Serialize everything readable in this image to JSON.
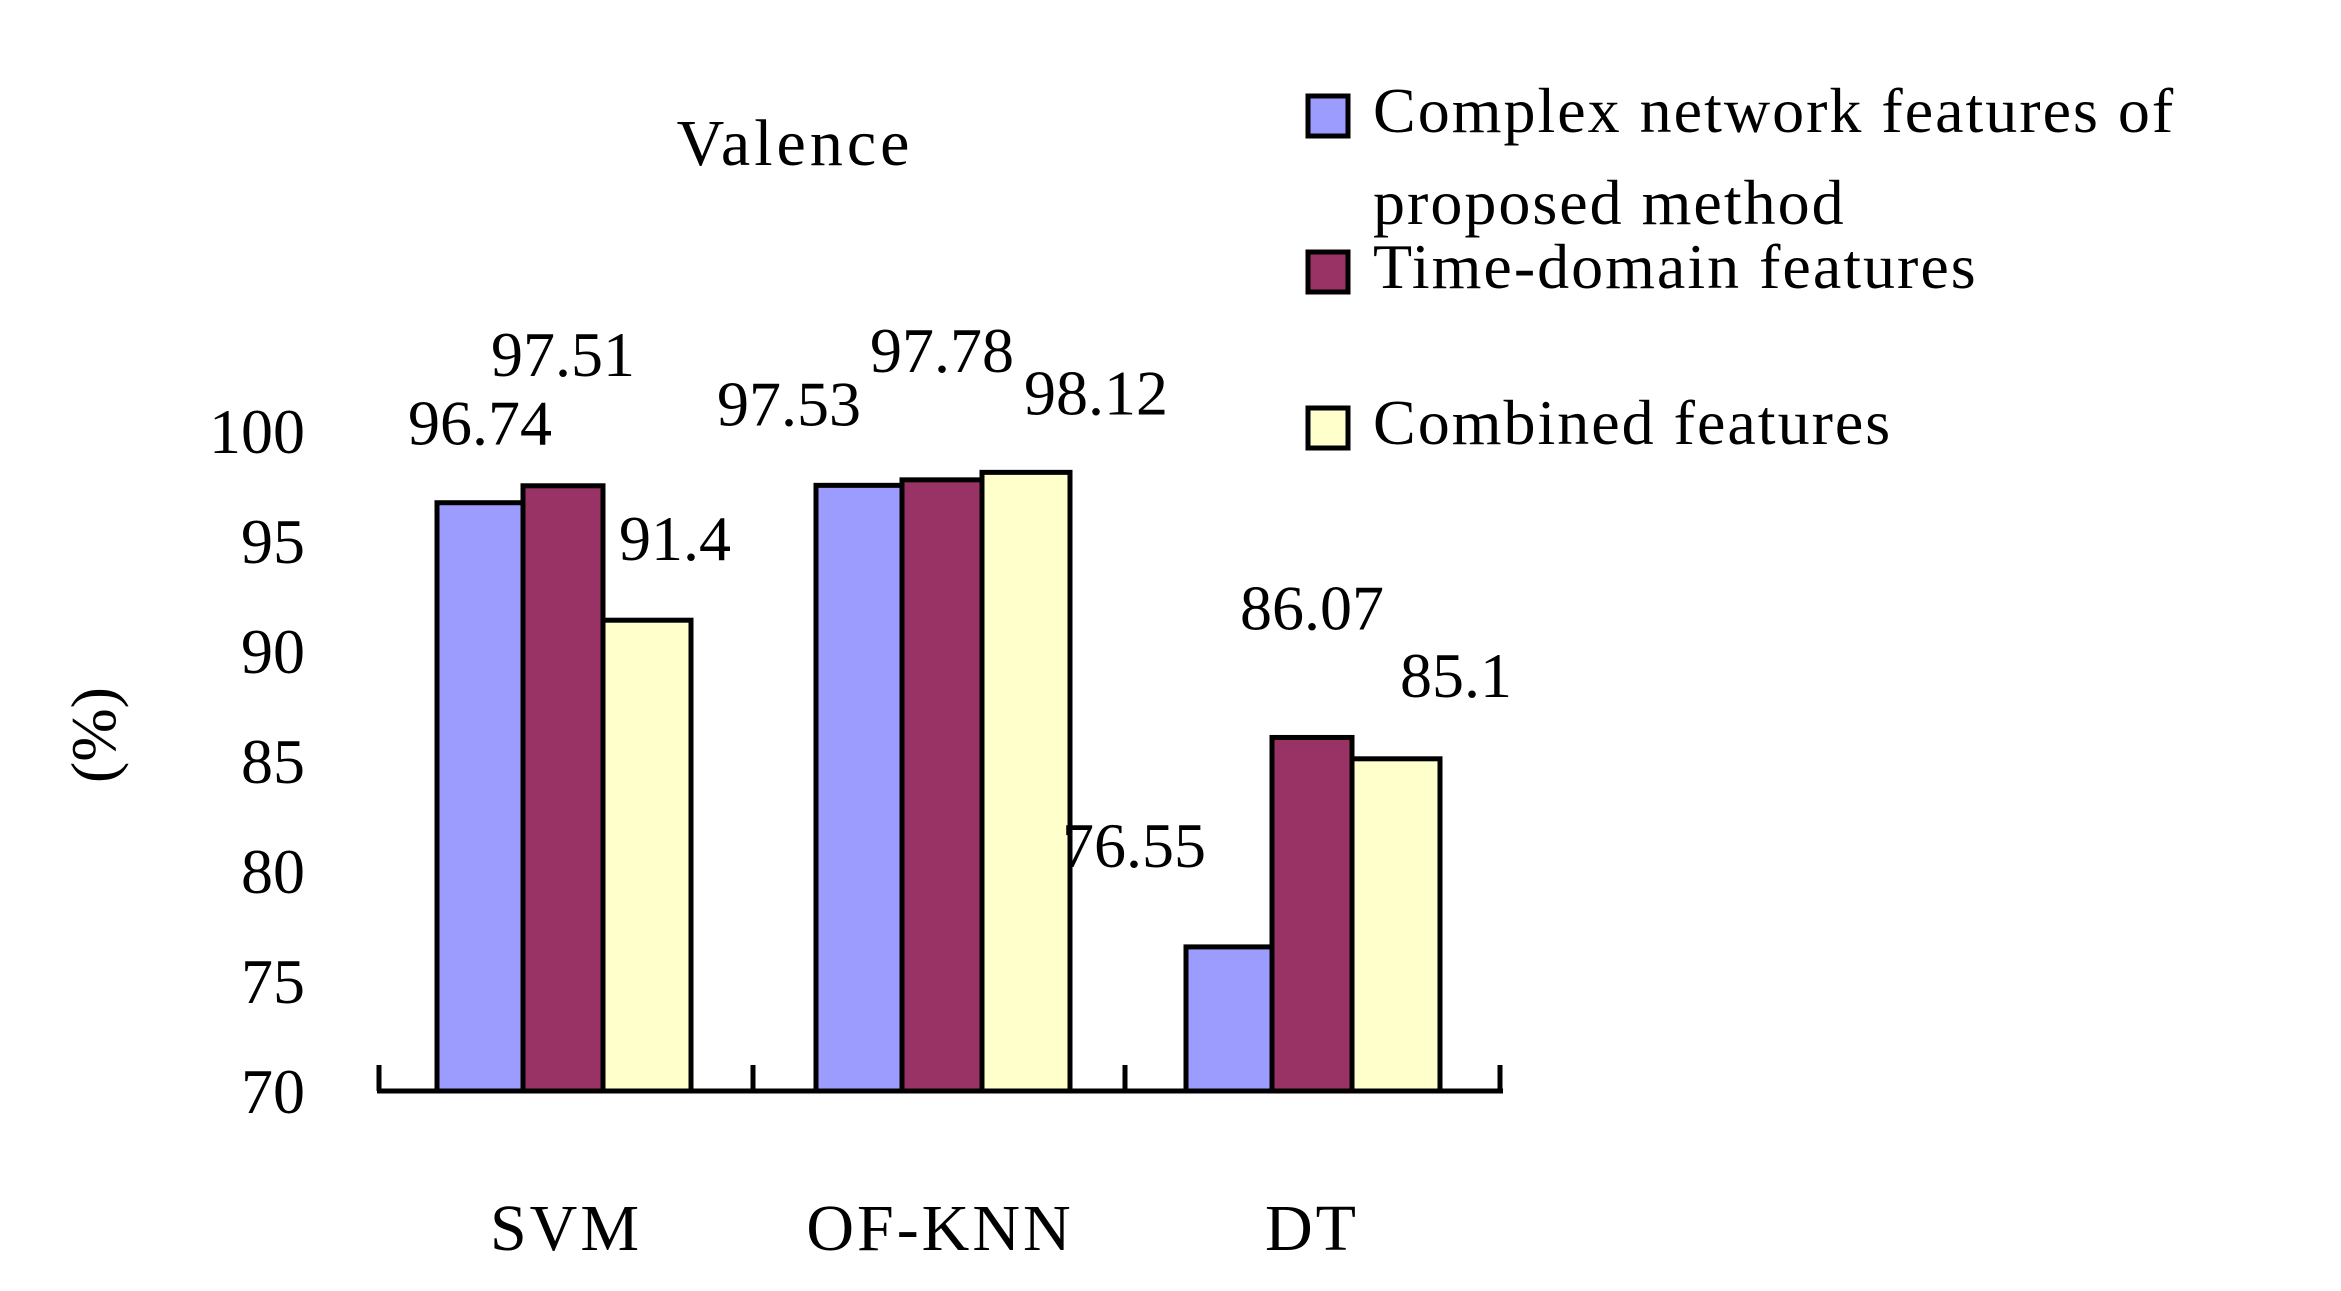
{
  "chart_data": {
    "type": "bar",
    "title": "Valence",
    "ylabel": "(%)",
    "xlabel": "",
    "ylim": [
      70,
      100
    ],
    "yticks": [
      70,
      75,
      80,
      85,
      90,
      95,
      100
    ],
    "categories": [
      "SVM",
      "OF-KNN",
      "DT"
    ],
    "series": [
      {
        "name": "Complex network features of proposed method",
        "color": "#9c9cff",
        "values": [
          96.74,
          97.53,
          76.55
        ],
        "labels": [
          "96.74",
          "97.53",
          "76.55"
        ]
      },
      {
        "name": "Time-domain features",
        "color": "#993366",
        "values": [
          97.51,
          97.78,
          86.07
        ],
        "labels": [
          "97.51",
          "97.78",
          "86.07"
        ]
      },
      {
        "name": "Combined features",
        "color": "#ffffcc",
        "values": [
          91.4,
          98.12,
          85.1
        ],
        "labels": [
          "91.4",
          "98.12",
          "85.1"
        ]
      }
    ],
    "legend": {
      "position": "top-right",
      "lines": [
        [
          "Complex network features of",
          "proposed method"
        ],
        [
          "Time-domain features"
        ],
        [
          "Combined features"
        ]
      ]
    },
    "grid": false
  }
}
